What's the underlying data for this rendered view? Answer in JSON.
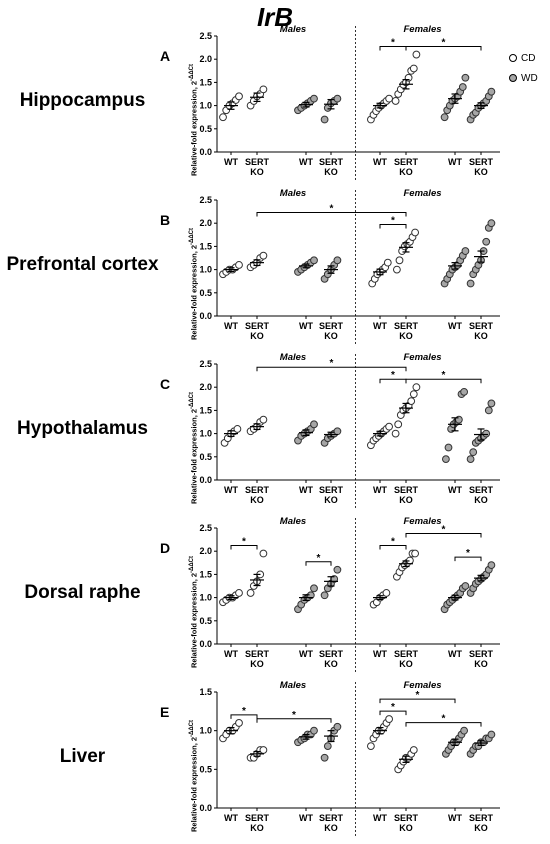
{
  "title": "IrB",
  "legend": [
    {
      "label": "CD",
      "color": "#ffffff"
    },
    {
      "label": "WD",
      "color": "#a6a6a6"
    }
  ],
  "chart_data": [
    {
      "type": "scatter",
      "panel": "A",
      "region": "Hippocampus",
      "ylabel": "Relative-fold expression, 2",
      "ylabel_sup": "-ΔΔCt",
      "ylim": [
        0,
        2.5
      ],
      "yticks": [
        "0.0",
        "0.5",
        "1.0",
        "1.5",
        "2.0",
        "2.5"
      ],
      "groups": [
        "Males",
        "Females"
      ],
      "categories": [
        "WT",
        "SERT KO",
        "WT",
        "SERT KO",
        "WT",
        "SERT KO",
        "WT",
        "SERT KO"
      ],
      "diets": [
        "CD",
        "CD",
        "WD",
        "WD",
        "CD",
        "CD",
        "WD",
        "WD"
      ],
      "means": [
        1.0,
        1.18,
        1.02,
        1.03,
        1.0,
        1.46,
        1.15,
        1.0
      ],
      "sems": [
        0.08,
        0.09,
        0.05,
        0.1,
        0.05,
        0.1,
        0.1,
        0.06
      ],
      "values": [
        [
          0.75,
          0.9,
          1.0,
          1.05,
          1.12,
          1.2
        ],
        [
          1.0,
          1.1,
          1.2,
          1.25,
          1.35
        ],
        [
          0.9,
          0.95,
          1.0,
          1.05,
          1.1,
          1.15
        ],
        [
          0.7,
          0.95,
          1.05,
          1.1,
          1.15
        ],
        [
          0.7,
          0.8,
          0.88,
          0.95,
          1.0,
          1.05,
          1.1,
          1.15
        ],
        [
          1.1,
          1.25,
          1.35,
          1.45,
          1.5,
          1.6,
          1.75,
          1.8,
          2.1
        ],
        [
          0.75,
          0.9,
          1.0,
          1.1,
          1.15,
          1.2,
          1.3,
          1.4,
          1.6
        ],
        [
          0.7,
          0.8,
          0.85,
          0.95,
          1.0,
          1.05,
          1.1,
          1.2,
          1.3
        ]
      ],
      "significance": [
        {
          "from": 4,
          "to": 5,
          "level": 0,
          "label": "*"
        },
        {
          "from": 5,
          "to": 7,
          "level": 0,
          "label": "*"
        }
      ]
    },
    {
      "type": "scatter",
      "panel": "B",
      "region": "Prefrontal cortex",
      "ylabel": "Relative-fold expression, 2",
      "ylabel_sup": "-ΔΔCt",
      "ylim": [
        0,
        2.5
      ],
      "yticks": [
        "0.0",
        "0.5",
        "1.0",
        "1.5",
        "2.0",
        "2.5"
      ],
      "groups": [
        "Males",
        "Females"
      ],
      "categories": [
        "WT",
        "SERT KO",
        "WT",
        "SERT KO",
        "WT",
        "SERT KO",
        "WT",
        "SERT KO"
      ],
      "diets": [
        "CD",
        "CD",
        "WD",
        "WD",
        "CD",
        "CD",
        "WD",
        "WD"
      ],
      "means": [
        1.0,
        1.15,
        1.08,
        1.0,
        0.95,
        1.48,
        1.08,
        1.28
      ],
      "sems": [
        0.04,
        0.06,
        0.04,
        0.08,
        0.06,
        0.1,
        0.07,
        0.12
      ],
      "values": [
        [
          0.9,
          0.95,
          1.0,
          1.0,
          1.05,
          1.1
        ],
        [
          1.05,
          1.1,
          1.15,
          1.25,
          1.3
        ],
        [
          0.95,
          1.0,
          1.05,
          1.1,
          1.15,
          1.2
        ],
        [
          0.8,
          0.9,
          1.0,
          1.1,
          1.2
        ],
        [
          0.7,
          0.8,
          0.9,
          0.95,
          1.0,
          1.05,
          1.15
        ],
        [
          1.0,
          1.2,
          1.4,
          1.5,
          1.55,
          1.6,
          1.7,
          1.8
        ],
        [
          0.7,
          0.8,
          0.9,
          1.0,
          1.05,
          1.1,
          1.2,
          1.3,
          1.4
        ],
        [
          0.7,
          0.9,
          1.0,
          1.1,
          1.2,
          1.4,
          1.6,
          1.9,
          2.0
        ]
      ],
      "significance": [
        {
          "from": 4,
          "to": 5,
          "level": 0,
          "label": "*"
        },
        {
          "from": 1,
          "to": 5,
          "level": 1,
          "label": "*"
        }
      ]
    },
    {
      "type": "scatter",
      "panel": "C",
      "region": "Hypothalamus",
      "ylabel": "Relative-fold expression, 2",
      "ylabel_sup": "-ΔΔCt",
      "ylim": [
        0,
        2.5
      ],
      "yticks": [
        "0.0",
        "0.5",
        "1.0",
        "1.5",
        "2.0",
        "2.5"
      ],
      "groups": [
        "Males",
        "Females"
      ],
      "categories": [
        "WT",
        "SERT KO",
        "WT",
        "SERT KO",
        "WT",
        "SERT KO",
        "WT",
        "SERT KO"
      ],
      "diets": [
        "CD",
        "CD",
        "WD",
        "WD",
        "CD",
        "CD",
        "WD",
        "WD"
      ],
      "means": [
        1.0,
        1.15,
        1.02,
        0.98,
        1.0,
        1.55,
        1.2,
        0.98
      ],
      "sems": [
        0.06,
        0.06,
        0.06,
        0.05,
        0.05,
        0.1,
        0.14,
        0.12
      ],
      "values": [
        [
          0.8,
          0.9,
          1.0,
          1.05,
          1.1
        ],
        [
          1.05,
          1.1,
          1.15,
          1.25,
          1.3
        ],
        [
          0.85,
          0.95,
          1.0,
          1.05,
          1.1,
          1.2
        ],
        [
          0.8,
          0.9,
          0.95,
          1.0,
          1.05
        ],
        [
          0.75,
          0.85,
          0.9,
          0.95,
          1.0,
          1.05,
          1.1,
          1.15
        ],
        [
          1.0,
          1.2,
          1.4,
          1.5,
          1.55,
          1.6,
          1.7,
          1.85,
          2.0
        ],
        [
          0.45,
          0.7,
          1.1,
          1.2,
          1.25,
          1.3,
          1.85,
          1.9
        ],
        [
          0.45,
          0.6,
          0.8,
          0.85,
          0.9,
          0.95,
          1.0,
          1.5,
          1.65
        ]
      ],
      "significance": [
        {
          "from": 4,
          "to": 5,
          "level": 0,
          "label": "*"
        },
        {
          "from": 5,
          "to": 7,
          "level": 0,
          "label": "*"
        },
        {
          "from": 1,
          "to": 5,
          "level": 1,
          "label": "*"
        }
      ]
    },
    {
      "type": "scatter",
      "panel": "D",
      "region": "Dorsal raphe",
      "ylabel": "Relative-fold expression, 2",
      "ylabel_sup": "-ΔΔCt",
      "ylim": [
        0,
        2.5
      ],
      "yticks": [
        "0.0",
        "0.5",
        "1.0",
        "1.5",
        "2.0",
        "2.5"
      ],
      "groups": [
        "Males",
        "Females"
      ],
      "categories": [
        "WT",
        "SERT KO",
        "WT",
        "SERT KO",
        "WT",
        "SERT KO",
        "WT",
        "SERT KO"
      ],
      "diets": [
        "CD",
        "CD",
        "WD",
        "WD",
        "CD",
        "CD",
        "WD",
        "WD"
      ],
      "means": [
        1.0,
        1.38,
        1.0,
        1.35,
        1.0,
        1.73,
        1.0,
        1.42
      ],
      "sems": [
        0.04,
        0.12,
        0.06,
        0.1,
        0.04,
        0.06,
        0.05,
        0.06
      ],
      "values": [
        [
          0.9,
          0.95,
          1.0,
          1.0,
          1.05,
          1.1
        ],
        [
          1.1,
          1.25,
          1.35,
          1.5,
          1.95
        ],
        [
          0.75,
          0.85,
          0.95,
          1.0,
          1.05,
          1.2
        ],
        [
          1.05,
          1.2,
          1.3,
          1.4,
          1.6
        ],
        [
          0.85,
          0.9,
          1.0,
          1.05,
          1.1
        ],
        [
          1.45,
          1.55,
          1.65,
          1.7,
          1.75,
          1.8,
          1.95,
          1.95
        ],
        [
          0.75,
          0.85,
          0.9,
          0.95,
          1.0,
          1.05,
          1.1,
          1.2,
          1.25
        ],
        [
          1.1,
          1.2,
          1.3,
          1.35,
          1.4,
          1.45,
          1.5,
          1.6,
          1.7
        ]
      ],
      "significance": [
        {
          "from": 0,
          "to": 1,
          "level": 0,
          "label": "*"
        },
        {
          "from": 2,
          "to": 3,
          "level": 0,
          "label": "*"
        },
        {
          "from": 4,
          "to": 5,
          "level": 0,
          "label": "*"
        },
        {
          "from": 6,
          "to": 7,
          "level": 0,
          "label": "*"
        },
        {
          "from": 5,
          "to": 7,
          "level": 1,
          "label": "*"
        }
      ]
    },
    {
      "type": "scatter",
      "panel": "E",
      "region": "Liver",
      "ylabel": "Relative-fold expression, 2",
      "ylabel_sup": "-ΔΔCt",
      "ylim": [
        0,
        1.5
      ],
      "yticks": [
        "0.0",
        "0.5",
        "1.0",
        "1.5"
      ],
      "groups": [
        "Males",
        "Females"
      ],
      "categories": [
        "WT",
        "SERT KO",
        "WT",
        "SERT KO",
        "WT",
        "SERT KO",
        "WT",
        "SERT KO"
      ],
      "diets": [
        "CD",
        "CD",
        "WD",
        "WD",
        "CD",
        "CD",
        "WD",
        "WD"
      ],
      "means": [
        1.0,
        0.7,
        0.92,
        0.93,
        1.0,
        0.63,
        0.85,
        0.84
      ],
      "sems": [
        0.04,
        0.03,
        0.03,
        0.07,
        0.04,
        0.04,
        0.04,
        0.03
      ],
      "values": [
        [
          0.9,
          0.95,
          1.0,
          1.0,
          1.05,
          1.1
        ],
        [
          0.65,
          0.65,
          0.7,
          0.75,
          0.75
        ],
        [
          0.85,
          0.88,
          0.9,
          0.95,
          0.95,
          1.0
        ],
        [
          0.65,
          0.8,
          0.9,
          1.0,
          1.05
        ],
        [
          0.8,
          0.9,
          0.95,
          1.0,
          1.0,
          1.05,
          1.1,
          1.15
        ],
        [
          0.5,
          0.55,
          0.6,
          0.65,
          0.65,
          0.7,
          0.75
        ],
        [
          0.7,
          0.75,
          0.8,
          0.85,
          0.85,
          0.9,
          0.95,
          1.0
        ],
        [
          0.7,
          0.75,
          0.8,
          0.8,
          0.85,
          0.85,
          0.9,
          0.9,
          0.95
        ]
      ],
      "significance": [
        {
          "from": 0,
          "to": 1,
          "level": 0,
          "label": "*"
        },
        {
          "from": 1,
          "to": 3,
          "level": 0,
          "label": "*"
        },
        {
          "from": 4,
          "to": 5,
          "level": 0,
          "label": "*"
        },
        {
          "from": 5,
          "to": 7,
          "level": 0,
          "label": "*"
        },
        {
          "from": 4,
          "to": 6,
          "level": 1,
          "label": "*"
        }
      ]
    }
  ]
}
